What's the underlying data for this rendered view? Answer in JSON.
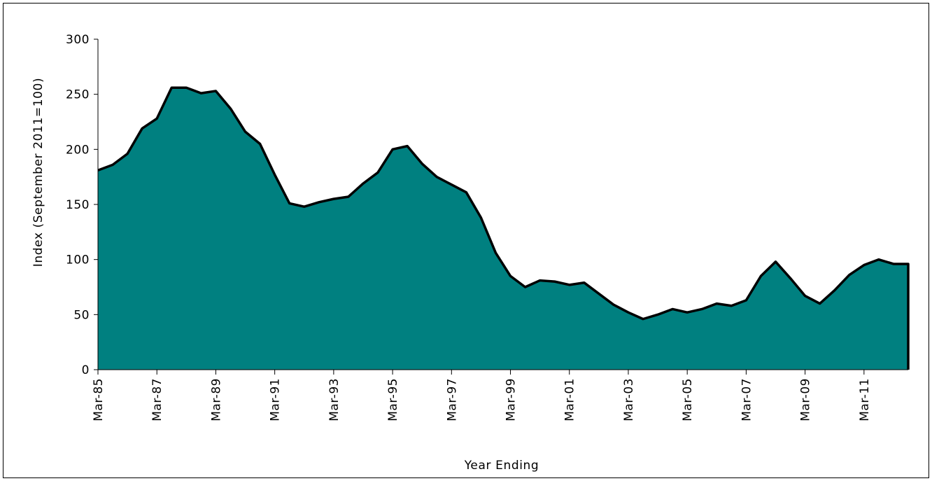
{
  "chart_data": {
    "type": "area",
    "title": "",
    "xlabel": "Year Ending",
    "ylabel": "Index (September 2011=100)",
    "ylim": [
      0,
      300
    ],
    "yticks": [
      0,
      50,
      100,
      150,
      200,
      250,
      300
    ],
    "xlim": [
      "Mar-85",
      "Sep-12"
    ],
    "xticks": [
      "Mar-85",
      "Mar-87",
      "Mar-89",
      "Mar-91",
      "Mar-93",
      "Mar-95",
      "Mar-97",
      "Mar-99",
      "Mar-01",
      "Mar-03",
      "Mar-05",
      "Mar-07",
      "Mar-09",
      "Mar-11"
    ],
    "x": [
      "Mar-85",
      "Sep-85",
      "Mar-86",
      "Sep-86",
      "Mar-87",
      "Sep-87",
      "Mar-88",
      "Sep-88",
      "Mar-89",
      "Sep-89",
      "Mar-90",
      "Sep-90",
      "Mar-91",
      "Sep-91",
      "Mar-92",
      "Sep-92",
      "Mar-93",
      "Sep-93",
      "Mar-94",
      "Sep-94",
      "Mar-95",
      "Sep-95",
      "Mar-96",
      "Sep-96",
      "Mar-97",
      "Sep-97",
      "Mar-98",
      "Sep-98",
      "Mar-99",
      "Sep-99",
      "Mar-00",
      "Sep-00",
      "Mar-01",
      "Sep-01",
      "Mar-02",
      "Sep-02",
      "Mar-03",
      "Sep-03",
      "Mar-04",
      "Sep-04",
      "Mar-05",
      "Sep-05",
      "Mar-06",
      "Sep-06",
      "Mar-07",
      "Sep-07",
      "Mar-08",
      "Sep-08",
      "Mar-09",
      "Sep-09",
      "Mar-10",
      "Sep-10",
      "Mar-11",
      "Sep-11",
      "Mar-12",
      "Sep-12"
    ],
    "series": [
      {
        "values": [
          181,
          186,
          196,
          219,
          228,
          256,
          256,
          251,
          253,
          237,
          216,
          205,
          177,
          151,
          148,
          152,
          155,
          157,
          169,
          179,
          200,
          203,
          187,
          175,
          168,
          161,
          138,
          106,
          85,
          75,
          81,
          80,
          77,
          79,
          69,
          59,
          52,
          46,
          50,
          55,
          52,
          55,
          60,
          58,
          63,
          85,
          98,
          83,
          67,
          60,
          72,
          86,
          95,
          100,
          96,
          96
        ]
      }
    ],
    "fill_color": "#008080",
    "line_color": "#000000",
    "grid": false,
    "legend": "none"
  }
}
